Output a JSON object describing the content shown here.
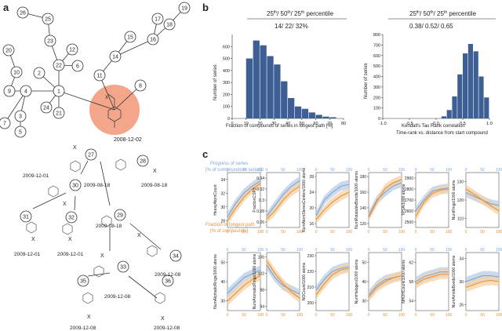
{
  "panels": {
    "a": "a",
    "b": "b",
    "c": "c"
  },
  "tree": {
    "nodes": [
      {
        "id": "n26",
        "label": "26"
      },
      {
        "id": "n25",
        "label": "25"
      },
      {
        "id": "n23",
        "label": "23"
      },
      {
        "id": "n12",
        "label": "12"
      },
      {
        "id": "n22",
        "label": "22"
      },
      {
        "id": "n6",
        "label": "6"
      },
      {
        "id": "n2",
        "label": "2"
      },
      {
        "id": "n20",
        "label": "20"
      },
      {
        "id": "n10",
        "label": "10"
      },
      {
        "id": "n9",
        "label": "9"
      },
      {
        "id": "n4",
        "label": "4"
      },
      {
        "id": "n1",
        "label": "1"
      },
      {
        "id": "n24",
        "label": "24"
      },
      {
        "id": "n21",
        "label": "21"
      },
      {
        "id": "n7",
        "label": "7"
      },
      {
        "id": "n3",
        "label": "3"
      },
      {
        "id": "n5",
        "label": "5"
      },
      {
        "id": "n11",
        "label": "11"
      },
      {
        "id": "n8",
        "label": "8"
      },
      {
        "id": "n14",
        "label": "14"
      },
      {
        "id": "n15",
        "label": "15"
      },
      {
        "id": "n16",
        "label": "16"
      },
      {
        "id": "n17",
        "label": "17"
      },
      {
        "id": "n18",
        "label": "18"
      },
      {
        "id": "n19",
        "label": "19"
      }
    ],
    "root_date": "2008-12-02",
    "compounds": [
      {
        "id": "c27",
        "label": "27"
      },
      {
        "id": "c28",
        "label": "28"
      },
      {
        "id": "c30",
        "label": "30"
      },
      {
        "id": "c31",
        "label": "31"
      },
      {
        "id": "c32",
        "label": "32"
      },
      {
        "id": "c29",
        "label": "29"
      },
      {
        "id": "c34",
        "label": "34"
      },
      {
        "id": "c33",
        "label": "33"
      },
      {
        "id": "c35",
        "label": "35"
      },
      {
        "id": "c36",
        "label": "36"
      }
    ],
    "dates": {
      "d1": "2009-12-01",
      "d2": "2009-08-18",
      "d3": "2009-08-18",
      "d4": "2009-12-01",
      "d5": "2009-12-01",
      "d6": "2009-08-18",
      "d7": "2009-12-08",
      "d8": "2009-12-08",
      "d9": "2009-12-08",
      "d10": "2009-12-08"
    },
    "x_mark": "X"
  },
  "hist1": {
    "header_prefix": "25",
    "header_mid1": "/ 50",
    "header_mid2": "/ 25",
    "header_sup": "th",
    "header_suffix": " percentile",
    "stats": "14/ 22/ 32%",
    "ylabel": "Number of series",
    "xlabel": "Fraction of compounds of series in longest path [%]"
  },
  "hist2": {
    "header_prefix": "25",
    "header_mid1": "/ 50",
    "header_mid2": "/ 25",
    "header_sup": "th",
    "header_suffix": " percentile",
    "stats": "0.38/ 0.52/ 0.65",
    "ylabel": "Number of series",
    "xlabel1": "Kendall's Tau Rank correlation",
    "xlabel2": "Time-rank vs. distance from start compound"
  },
  "legend_c": {
    "blue_line1": "Progress of series",
    "blue_line2": "[% of compounds in series]",
    "orange_line1": "Fraction of longest path",
    "orange_line2": "[% of compounds]"
  },
  "colors": {
    "hist": "#3e5f94",
    "blue_band": "#b9cce6",
    "blue_line": "#7ea6d8",
    "orange_band": "#f6d2a6",
    "orange_line": "#e8913a",
    "highlight": "#f3a689"
  },
  "chart_data": [
    {
      "type": "bar",
      "title": "",
      "xlabel": "Fraction of compounds of series in longest path [%]",
      "ylabel": "Number of series",
      "xlim": [
        0,
        80
      ],
      "ylim": [
        0,
        700
      ],
      "xticks": [
        0,
        10,
        20,
        30,
        40,
        50,
        60,
        70,
        80
      ],
      "yticks": [
        0,
        100,
        200,
        300,
        400,
        500,
        600
      ],
      "bin_edges": [
        10,
        15,
        20,
        25,
        30,
        35,
        40,
        45,
        50,
        55,
        60,
        65,
        70,
        75
      ],
      "values": [
        500,
        650,
        610,
        520,
        450,
        310,
        170,
        100,
        80,
        50,
        30,
        15,
        10
      ]
    },
    {
      "type": "bar",
      "title": "",
      "xlabel": "Kendall's Tau Rank correlation Time-rank vs. distance from start compound",
      "ylabel": "Number of series",
      "xlim": [
        -1.0,
        1.0
      ],
      "ylim": [
        0,
        800
      ],
      "xticks": [
        -1.0,
        -0.5,
        0.0,
        0.5,
        1.0
      ],
      "yticks": [
        0,
        100,
        200,
        300,
        400,
        500,
        600,
        700,
        800
      ],
      "bin_edges": [
        0.1,
        0.2,
        0.3,
        0.4,
        0.5,
        0.6,
        0.7,
        0.8,
        0.9,
        1.0
      ],
      "values": [
        20,
        80,
        210,
        420,
        620,
        710,
        640,
        400,
        200
      ]
    },
    {
      "type": "line",
      "ylabel": "HeavyAtomCount",
      "yticks": [
        28,
        30,
        32,
        34
      ],
      "ylim": [
        27,
        35
      ],
      "x": [
        0,
        25,
        50,
        75,
        100
      ],
      "series": [
        {
          "values": [
            28.5,
            30.5,
            32.0,
            33.0,
            33.8
          ]
        },
        {
          "values": [
            28.0,
            29.8,
            31.4,
            32.6,
            33.4
          ]
        }
      ]
    },
    {
      "type": "line",
      "ylabel": "FractionCSP3",
      "yticks": [
        0.26,
        0.28,
        0.3,
        0.32,
        0.34
      ],
      "ylim": [
        0.25,
        0.35
      ],
      "x": [
        0,
        25,
        50,
        75,
        100
      ],
      "series": [
        {
          "values": [
            0.27,
            0.29,
            0.31,
            0.325,
            0.335
          ]
        },
        {
          "values": [
            0.265,
            0.28,
            0.3,
            0.315,
            0.325
          ]
        }
      ]
    },
    {
      "type": "line",
      "ylabel": "NumAtomStereoCenters/1000 atoms",
      "yticks": [
        16,
        20,
        24,
        28
      ],
      "ylim": [
        15,
        29
      ],
      "x": [
        0,
        25,
        50,
        75,
        100
      ],
      "series": [
        {
          "values": [
            18,
            22,
            24,
            25.5,
            26
          ]
        },
        {
          "values": [
            17,
            19.5,
            21.5,
            23,
            24
          ]
        }
      ]
    },
    {
      "type": "line",
      "ylabel": "NumRotatableBonds/1000 atoms",
      "yticks": [
        120,
        140,
        160,
        180
      ],
      "ylim": [
        115,
        185
      ],
      "x": [
        0,
        25,
        50,
        75,
        100
      ],
      "series": [
        {
          "values": [
            130,
            150,
            160,
            168,
            172
          ]
        },
        {
          "values": [
            128,
            148,
            165,
            172,
            176
          ]
        }
      ]
    },
    {
      "type": "line",
      "ylabel": "TPSA/1000 atoms",
      "yticks": [
        2500,
        2600,
        2700,
        2800,
        2900
      ],
      "ylim": [
        2450,
        2950
      ],
      "x": [
        0,
        25,
        50,
        75,
        100
      ],
      "series": [
        {
          "values": [
            2600,
            2700,
            2780,
            2800,
            2810
          ]
        },
        {
          "values": [
            2550,
            2680,
            2760,
            2790,
            2800
          ]
        }
      ]
    },
    {
      "type": "line",
      "ylabel": "NumRings/1000 atoms",
      "yticks": [
        110,
        120,
        130
      ],
      "ylim": [
        105,
        135
      ],
      "x": [
        0,
        25,
        50,
        75,
        100
      ],
      "series": [
        {
          "values": [
            124,
            122,
            120,
            118,
            117
          ]
        },
        {
          "values": [
            126,
            123,
            120,
            117,
            114
          ]
        }
      ]
    },
    {
      "type": "line",
      "ylabel": "NumAliphaticRings/1000 atoms",
      "yticks": [
        30,
        40,
        50
      ],
      "ylim": [
        25,
        55
      ],
      "x": [
        0,
        25,
        50,
        75,
        100
      ],
      "series": [
        {
          "values": [
            34,
            38,
            42,
            44,
            46
          ]
        },
        {
          "values": [
            30,
            34,
            38,
            41,
            43
          ]
        }
      ]
    },
    {
      "type": "line",
      "ylabel": "NumAromaticRings/1000 atoms",
      "yticks": [
        94,
        98,
        102,
        106
      ],
      "ylim": [
        93,
        107
      ],
      "x": [
        0,
        25,
        50,
        75,
        100
      ],
      "series": [
        {
          "values": [
            104,
            101,
            99,
            98,
            97
          ]
        },
        {
          "values": [
            105,
            102,
            99.5,
            97.5,
            96
          ]
        }
      ]
    },
    {
      "type": "line",
      "ylabel": "NOCount/1000 atoms",
      "yticks": [
        200,
        210,
        220,
        230
      ],
      "ylim": [
        195,
        232
      ],
      "x": [
        0,
        25,
        50,
        75,
        100
      ],
      "series": [
        {
          "values": [
            208,
            215,
            220,
            222,
            223
          ]
        },
        {
          "values": [
            205,
            212,
            218,
            221,
            222
          ]
        }
      ]
    },
    {
      "type": "line",
      "ylabel": "NumHalogen/1000 atoms",
      "yticks": [
        30,
        40,
        50
      ],
      "ylim": [
        25,
        55
      ],
      "x": [
        0,
        25,
        50,
        75,
        100
      ],
      "series": [
        {
          "values": [
            33,
            38,
            41,
            42,
            43
          ]
        },
        {
          "values": [
            32,
            37,
            40,
            42,
            43
          ]
        }
      ]
    },
    {
      "type": "line",
      "ylabel": "NHOHCount/1000 atoms",
      "yticks": [
        54,
        58,
        62
      ],
      "ylim": [
        52,
        64
      ],
      "x": [
        0,
        25,
        50,
        75,
        100
      ],
      "series": [
        {
          "values": [
            58,
            59,
            59.5,
            60,
            60
          ]
        },
        {
          "values": [
            57.5,
            58.5,
            59,
            59.5,
            59.5
          ]
        }
      ]
    },
    {
      "type": "line",
      "ylabel": "NumAmideBonds/1000 atoms",
      "yticks": [
        26,
        30,
        34
      ],
      "ylim": [
        25,
        35
      ],
      "x": [
        0,
        25,
        50,
        75,
        100
      ],
      "series": [
        {
          "values": [
            30,
            30.5,
            31,
            31,
            30.8
          ]
        },
        {
          "values": [
            29,
            29.5,
            30,
            30.2,
            30
          ]
        }
      ]
    }
  ]
}
